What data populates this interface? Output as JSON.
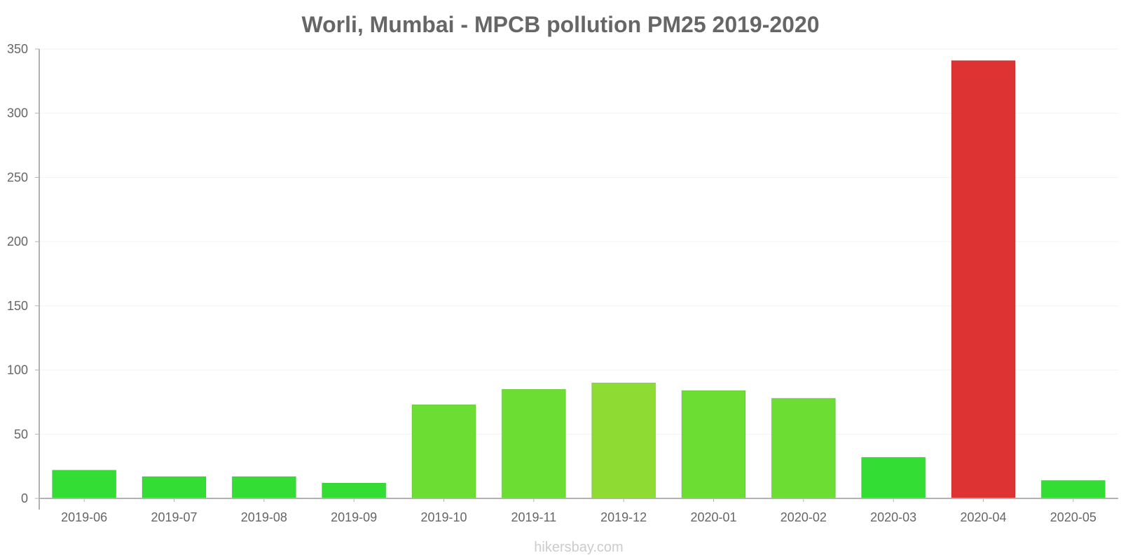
{
  "chart_data": {
    "type": "bar",
    "title": "Worli, Mumbai - MPCB pollution PM25 2019-2020",
    "xlabel": "",
    "ylabel": "",
    "categories": [
      "2019-06",
      "2019-07",
      "2019-08",
      "2019-09",
      "2019-10",
      "2019-11",
      "2019-12",
      "2020-01",
      "2020-02",
      "2020-03",
      "2020-04",
      "2020-05"
    ],
    "values": [
      22,
      17,
      17,
      12,
      73,
      85,
      90,
      84,
      78,
      32,
      341,
      14
    ],
    "colors": [
      "#33dd33",
      "#33dd33",
      "#33dd33",
      "#33dd33",
      "#6cdd33",
      "#6cdd33",
      "#8ddb33",
      "#6cdd33",
      "#6cdd33",
      "#33dd33",
      "#dd3333",
      "#33dd33"
    ],
    "ylim": [
      0,
      350
    ],
    "yticks": [
      0,
      50,
      100,
      150,
      200,
      250,
      300,
      350
    ],
    "grid": true,
    "legend": "none"
  },
  "watermark": "hikersbay.com"
}
